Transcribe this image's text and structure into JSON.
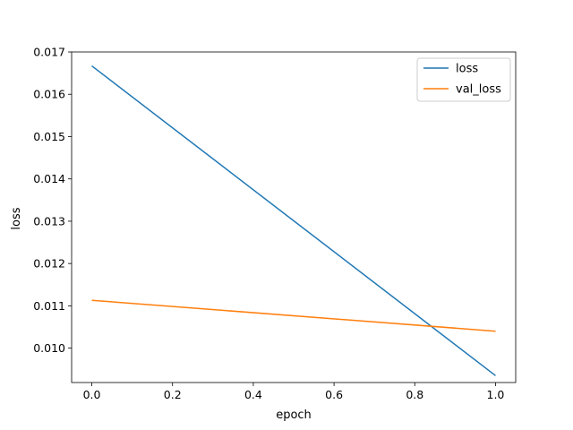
{
  "chart_data": {
    "type": "line",
    "title": "",
    "xlabel": "epoch",
    "ylabel": "loss",
    "xlim": [
      -0.05,
      1.05
    ],
    "ylim": [
      0.009187,
      0.017
    ],
    "x_ticks": [
      0.0,
      0.2,
      0.4,
      0.6,
      0.8,
      1.0
    ],
    "x_tick_labels": [
      "0.0",
      "0.2",
      "0.4",
      "0.6",
      "0.8",
      "1.0"
    ],
    "y_ticks": [
      0.01,
      0.011,
      0.012,
      0.013,
      0.014,
      0.015,
      0.016,
      0.017
    ],
    "y_tick_labels": [
      "0.010",
      "0.011",
      "0.012",
      "0.013",
      "0.014",
      "0.015",
      "0.016",
      "0.017"
    ],
    "grid": false,
    "legend_position": "top-right",
    "series": [
      {
        "name": "loss",
        "color": "#1f77b4",
        "x": [
          0,
          1
        ],
        "values": [
          0.01667,
          0.00935
        ]
      },
      {
        "name": "val_loss",
        "color": "#ff7f0e",
        "x": [
          0,
          1
        ],
        "values": [
          0.01113,
          0.0104
        ]
      }
    ]
  }
}
